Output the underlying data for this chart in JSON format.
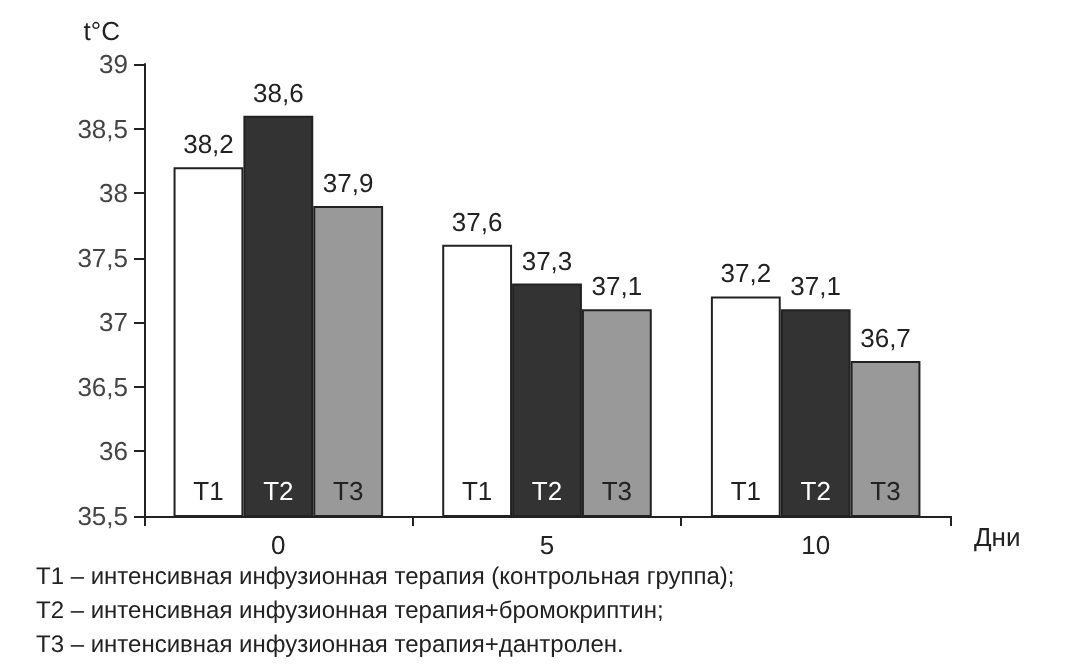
{
  "chart_data": {
    "type": "bar",
    "ylabel": "t°C",
    "xlabel": "Дни",
    "categories": [
      "0",
      "5",
      "10"
    ],
    "series": [
      {
        "name": "T1",
        "color": "#ffffff",
        "values": [
          38.2,
          37.6,
          37.2
        ],
        "value_labels": [
          "38,2",
          "37,6",
          "37,2"
        ]
      },
      {
        "name": "T2",
        "color": "#333333",
        "values": [
          38.6,
          37.3,
          37.1
        ],
        "value_labels": [
          "38,6",
          "37,3",
          "37,1"
        ]
      },
      {
        "name": "T3",
        "color": "#999999",
        "values": [
          37.9,
          37.1,
          36.7
        ],
        "value_labels": [
          "37,9",
          "37,1",
          "36,7"
        ]
      }
    ],
    "ylim": [
      35.5,
      39
    ],
    "yticks": [
      {
        "value": 35.5,
        "label": "35,5"
      },
      {
        "value": 36,
        "label": "36"
      },
      {
        "value": 36.5,
        "label": "36,5"
      },
      {
        "value": 37,
        "label": "37"
      },
      {
        "value": 37.5,
        "label": "37,5"
      },
      {
        "value": 38,
        "label": "38"
      },
      {
        "value": 38.5,
        "label": "38,5"
      },
      {
        "value": 39,
        "label": "39"
      }
    ],
    "grid": false,
    "legend": false,
    "annotations": [
      "T1 – интенсивная инфузионная терапия (контрольная группа);",
      "T2 – интенсивная инфузионная терапия+бромокриптин;",
      "T3 – интенсивная инфузионная терапия+дантролен."
    ]
  }
}
